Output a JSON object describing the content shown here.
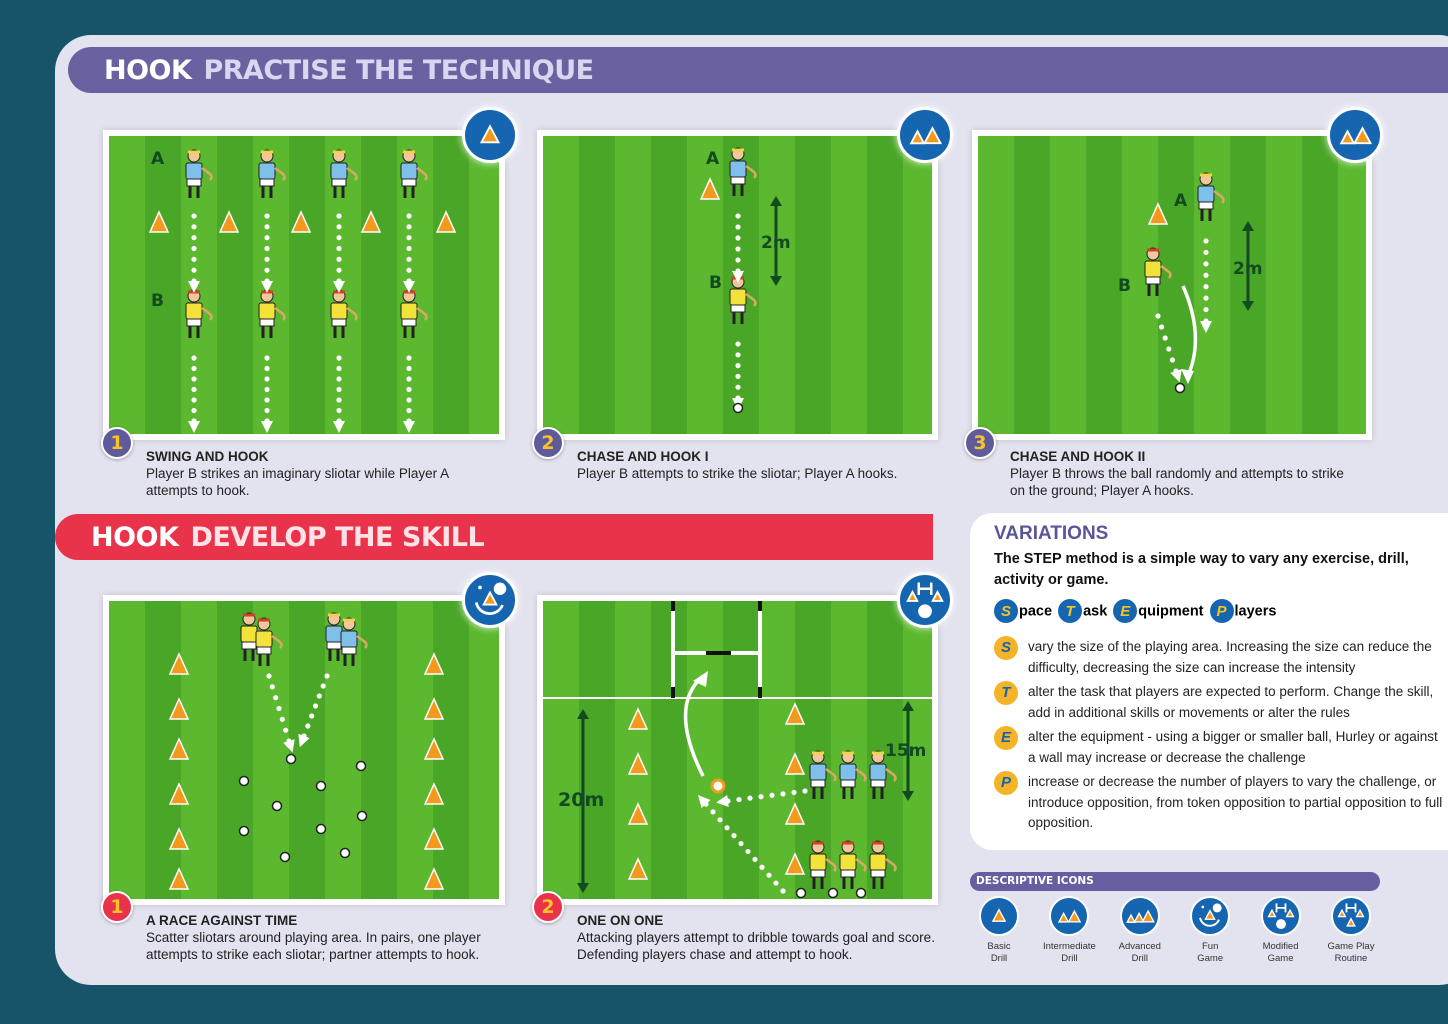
{
  "section1": {
    "word": "HOOK",
    "title": "PRACTISE THE TECHNIQUE",
    "color": "#6a62a0"
  },
  "section2": {
    "word": "HOOK",
    "title": "DEVELOP THE SKILL",
    "color": "#e8334a"
  },
  "drills": [
    {
      "number": "1",
      "title": "SWING AND HOOK",
      "desc": "Player B strikes an imaginary sliotar while Player A attempts to hook.",
      "icon": "basic-drill",
      "labels": [
        "A",
        "B"
      ]
    },
    {
      "number": "2",
      "title": "CHASE AND HOOK I",
      "desc": "Player B attempts to strike the sliotar; Player A hooks.",
      "icon": "intermediate-drill",
      "labels": [
        "A",
        "B",
        "2m"
      ]
    },
    {
      "number": "3",
      "title": "CHASE AND HOOK II",
      "desc": "Player B throws the ball randomly and attempts to strike on the ground; Player A hooks.",
      "icon": "intermediate-drill",
      "labels": [
        "A",
        "B",
        "2m"
      ]
    },
    {
      "number": "1",
      "title": "A RACE AGAINST TIME",
      "desc": "Scatter sliotars around playing area. In pairs, one player attempts to strike each sliotar; partner attempts to hook.",
      "icon": "fun-game",
      "labels": []
    },
    {
      "number": "2",
      "title": "ONE ON ONE",
      "desc": "Attacking players attempt to dribble towards goal and score. Defending players chase and attempt to hook.",
      "icon": "modified-game",
      "labels": [
        "20m",
        "15m"
      ]
    }
  ],
  "variations": {
    "title": "VARIATIONS",
    "intro": "The STEP method is a simple way to vary any exercise, drill, activity or game.",
    "step": [
      {
        "letter": "S",
        "rest": "pace"
      },
      {
        "letter": "T",
        "rest": "ask"
      },
      {
        "letter": "E",
        "rest": "quipment"
      },
      {
        "letter": "P",
        "rest": "layers"
      }
    ],
    "items": [
      {
        "letter": "S",
        "text": "vary the size of the playing area. Increasing the size can reduce the difficulty, decreasing the size can increase the intensity"
      },
      {
        "letter": "T",
        "text": "alter the task that players are expected to perform. Change the skill, add in additional skills or movements or alter the rules"
      },
      {
        "letter": "E",
        "text": "alter the equipment - using a bigger or smaller ball, Hurley or against a wall may increase or decrease the challenge"
      },
      {
        "letter": "P",
        "text": "increase or decrease the number of players to vary the challenge, or introduce opposition, from token opposition to partial opposition to full opposition."
      }
    ]
  },
  "descriptive_icons": {
    "title": "DESCRIPTIVE ICONS",
    "items": [
      {
        "icon": "basic-drill",
        "l1": "Basic",
        "l2": "Drill"
      },
      {
        "icon": "intermediate-drill",
        "l1": "Intermediate",
        "l2": "Drill"
      },
      {
        "icon": "advanced-drill",
        "l1": "Advanced",
        "l2": "Drill"
      },
      {
        "icon": "fun-game",
        "l1": "Fun",
        "l2": "Game"
      },
      {
        "icon": "modified-game",
        "l1": "Modified",
        "l2": "Game"
      },
      {
        "icon": "game-play-routine",
        "l1": "Game Play",
        "l2": "Routine"
      }
    ]
  },
  "colors": {
    "background": "#17546a",
    "panel": "#e3e2ef",
    "cone": "#f39a1e",
    "blue_team": "#7ec0ea",
    "yellow_team": "#f2e23a",
    "icon_blue": "#1565b0",
    "badge_yellow": "#f7c325"
  }
}
